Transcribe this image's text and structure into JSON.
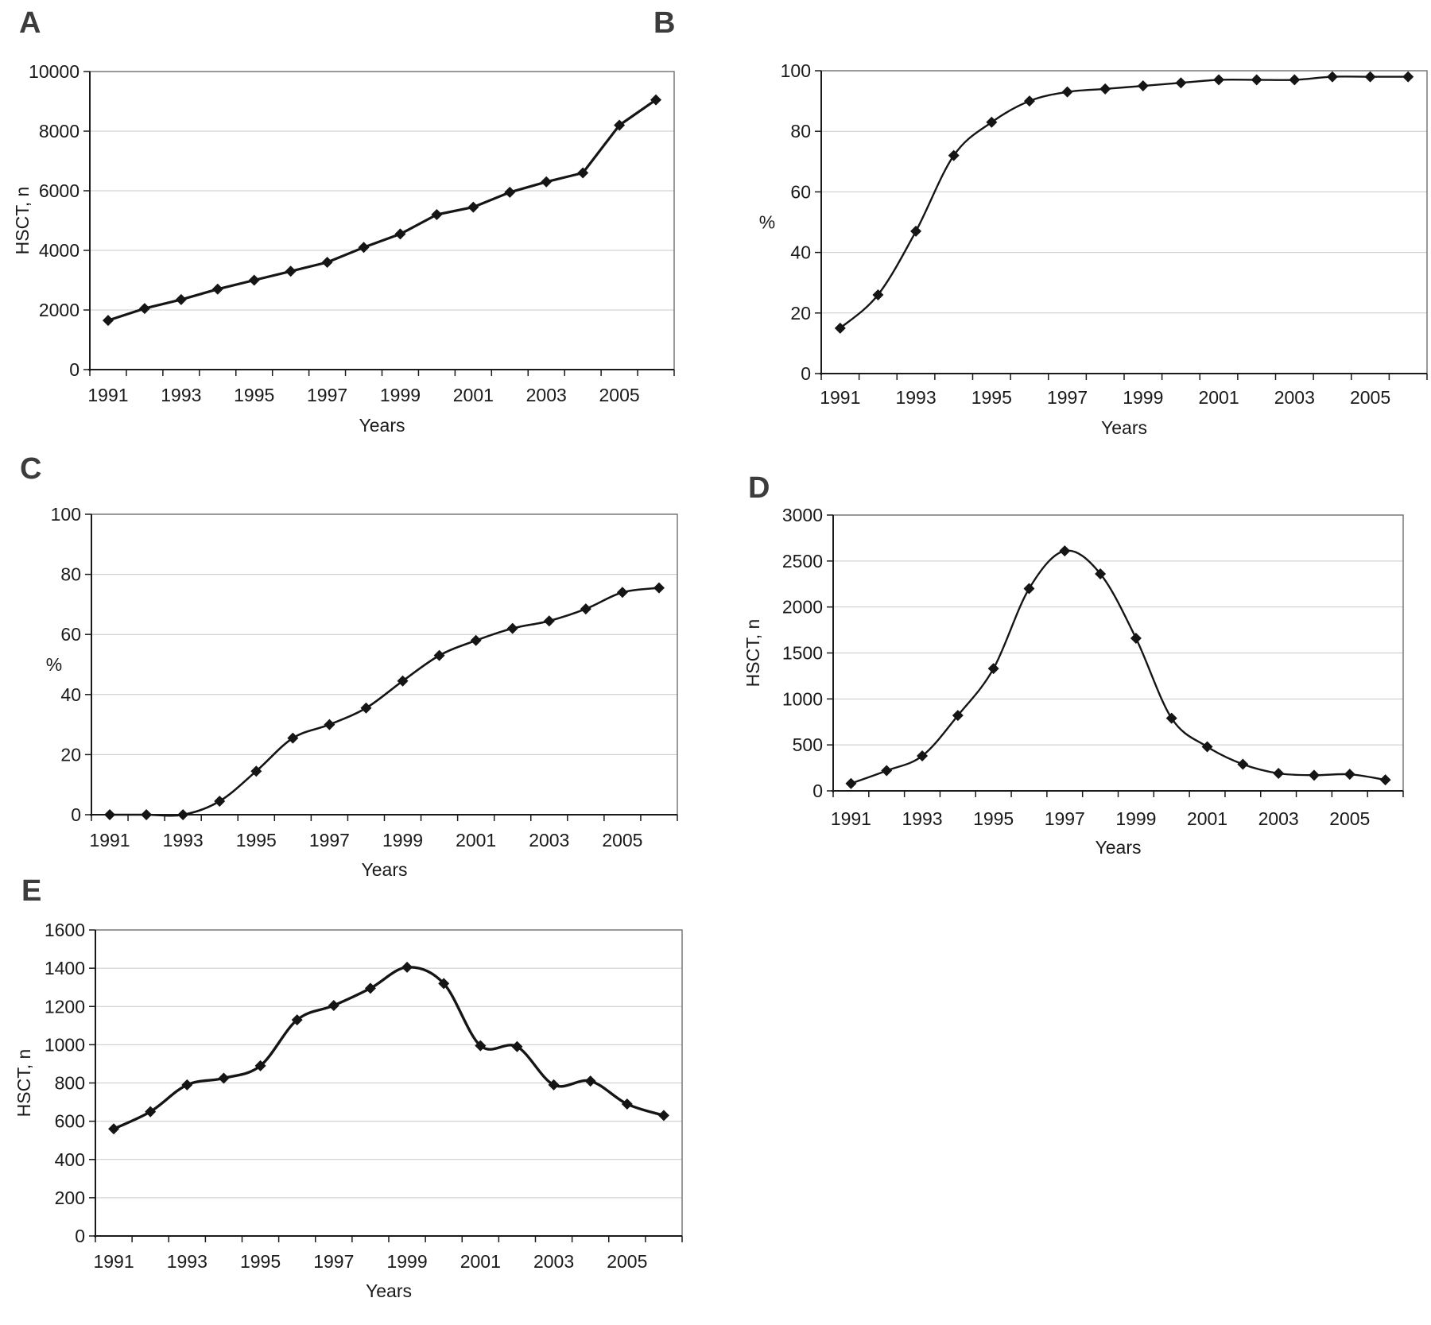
{
  "figure": {
    "background": "#ffffff",
    "description": "Five-panel line figure of HSCT activity over time",
    "panel_letters": [
      "A",
      "B",
      "C",
      "D",
      "E"
    ]
  },
  "chart_data": [
    {
      "panel": "A",
      "type": "line",
      "x": [
        1991,
        1992,
        1993,
        1994,
        1995,
        1996,
        1997,
        1998,
        1999,
        2000,
        2001,
        2002,
        2003,
        2004,
        2005,
        2006
      ],
      "values": [
        1650,
        2050,
        2350,
        2700,
        3000,
        3300,
        3600,
        4100,
        4550,
        5200,
        5450,
        5950,
        6300,
        6600,
        8200,
        9050
      ],
      "title": "",
      "xlabel": "Years",
      "ylabel": "HSCT, n",
      "ylabel_rotated": true,
      "ylim": [
        0,
        10000
      ],
      "y_tick_labels": [
        "0",
        "2000",
        "4000",
        "6000",
        "8000",
        "10000"
      ],
      "x_tick_labels": [
        "1991",
        "1993",
        "1995",
        "1997",
        "1999",
        "2001",
        "2003",
        "2005"
      ],
      "grid": "horizontal",
      "legend": "none",
      "smooth": false,
      "line_color": "#151515",
      "marker": "diamond",
      "marker_color": "#151515",
      "grid_color": "#c9c9c9"
    },
    {
      "panel": "B",
      "type": "line",
      "x": [
        1991,
        1992,
        1993,
        1994,
        1995,
        1996,
        1997,
        1998,
        1999,
        2000,
        2001,
        2002,
        2003,
        2004,
        2005,
        2006
      ],
      "values": [
        15,
        26,
        47,
        72,
        83,
        90,
        93,
        94,
        95,
        96,
        97,
        97,
        97,
        98,
        98,
        98
      ],
      "title": "",
      "xlabel": "Years",
      "ylabel": "%",
      "ylabel_rotated": false,
      "ylim": [
        0,
        100
      ],
      "y_tick_labels": [
        "0",
        "20",
        "40",
        "60",
        "80",
        "100"
      ],
      "x_tick_labels": [
        "1991",
        "1993",
        "1995",
        "1997",
        "1999",
        "2001",
        "2003",
        "2005"
      ],
      "grid": "horizontal",
      "legend": "none",
      "smooth": true,
      "line_color": "#151515",
      "marker": "diamond",
      "marker_color": "#151515",
      "grid_color": "#c9c9c9"
    },
    {
      "panel": "C",
      "type": "line",
      "x": [
        1991,
        1992,
        1993,
        1994,
        1995,
        1996,
        1997,
        1998,
        1999,
        2000,
        2001,
        2002,
        2003,
        2004,
        2005,
        2006
      ],
      "values": [
        0,
        0,
        0,
        4.5,
        14.5,
        25.5,
        30,
        35.5,
        44.5,
        53,
        58,
        62,
        64.5,
        68.5,
        74,
        75.5
      ],
      "title": "",
      "xlabel": "Years",
      "ylabel": "%",
      "ylabel_rotated": false,
      "ylim": [
        0,
        100
      ],
      "y_tick_labels": [
        "0",
        "20",
        "40",
        "60",
        "80",
        "100"
      ],
      "x_tick_labels": [
        "1991",
        "1993",
        "1995",
        "1997",
        "1999",
        "2001",
        "2003",
        "2005"
      ],
      "grid": "horizontal",
      "legend": "none",
      "smooth": true,
      "line_color": "#151515",
      "marker": "diamond",
      "marker_color": "#151515",
      "grid_color": "#c9c9c9"
    },
    {
      "panel": "D",
      "type": "line",
      "x": [
        1991,
        1992,
        1993,
        1994,
        1995,
        1996,
        1997,
        1998,
        1999,
        2000,
        2001,
        2002,
        2003,
        2004,
        2005,
        2006
      ],
      "values": [
        80,
        220,
        380,
        820,
        1330,
        2200,
        2610,
        2360,
        1660,
        790,
        480,
        290,
        190,
        170,
        180,
        120
      ],
      "title": "",
      "xlabel": "Years",
      "ylabel": "HSCT, n",
      "ylabel_rotated": true,
      "ylim": [
        0,
        3000
      ],
      "y_tick_labels": [
        "0",
        "500",
        "1000",
        "1500",
        "2000",
        "2500",
        "3000"
      ],
      "x_tick_labels": [
        "1991",
        "1993",
        "1995",
        "1997",
        "1999",
        "2001",
        "2003",
        "2005"
      ],
      "grid": "horizontal",
      "legend": "none",
      "smooth": true,
      "line_color": "#151515",
      "marker": "diamond",
      "marker_color": "#151515",
      "grid_color": "#c9c9c9"
    },
    {
      "panel": "E",
      "type": "line",
      "x": [
        1991,
        1992,
        1993,
        1994,
        1995,
        1996,
        1997,
        1998,
        1999,
        2000,
        2001,
        2002,
        2003,
        2004,
        2005,
        2006
      ],
      "values": [
        560,
        650,
        790,
        825,
        890,
        1130,
        1205,
        1295,
        1405,
        1320,
        995,
        990,
        790,
        810,
        690,
        630
      ],
      "title": "",
      "xlabel": "Years",
      "ylabel": "HSCT, n",
      "ylabel_rotated": true,
      "ylim": [
        0,
        1600
      ],
      "y_tick_labels": [
        "0",
        "200",
        "400",
        "600",
        "800",
        "1000",
        "1200",
        "1400",
        "1600"
      ],
      "x_tick_labels": [
        "1991",
        "1993",
        "1995",
        "1997",
        "1999",
        "2001",
        "2003",
        "2005"
      ],
      "grid": "horizontal",
      "legend": "none",
      "smooth": true,
      "line_color": "#151515",
      "marker": "diamond",
      "marker_color": "#151515",
      "grid_color": "#c9c9c9"
    }
  ]
}
